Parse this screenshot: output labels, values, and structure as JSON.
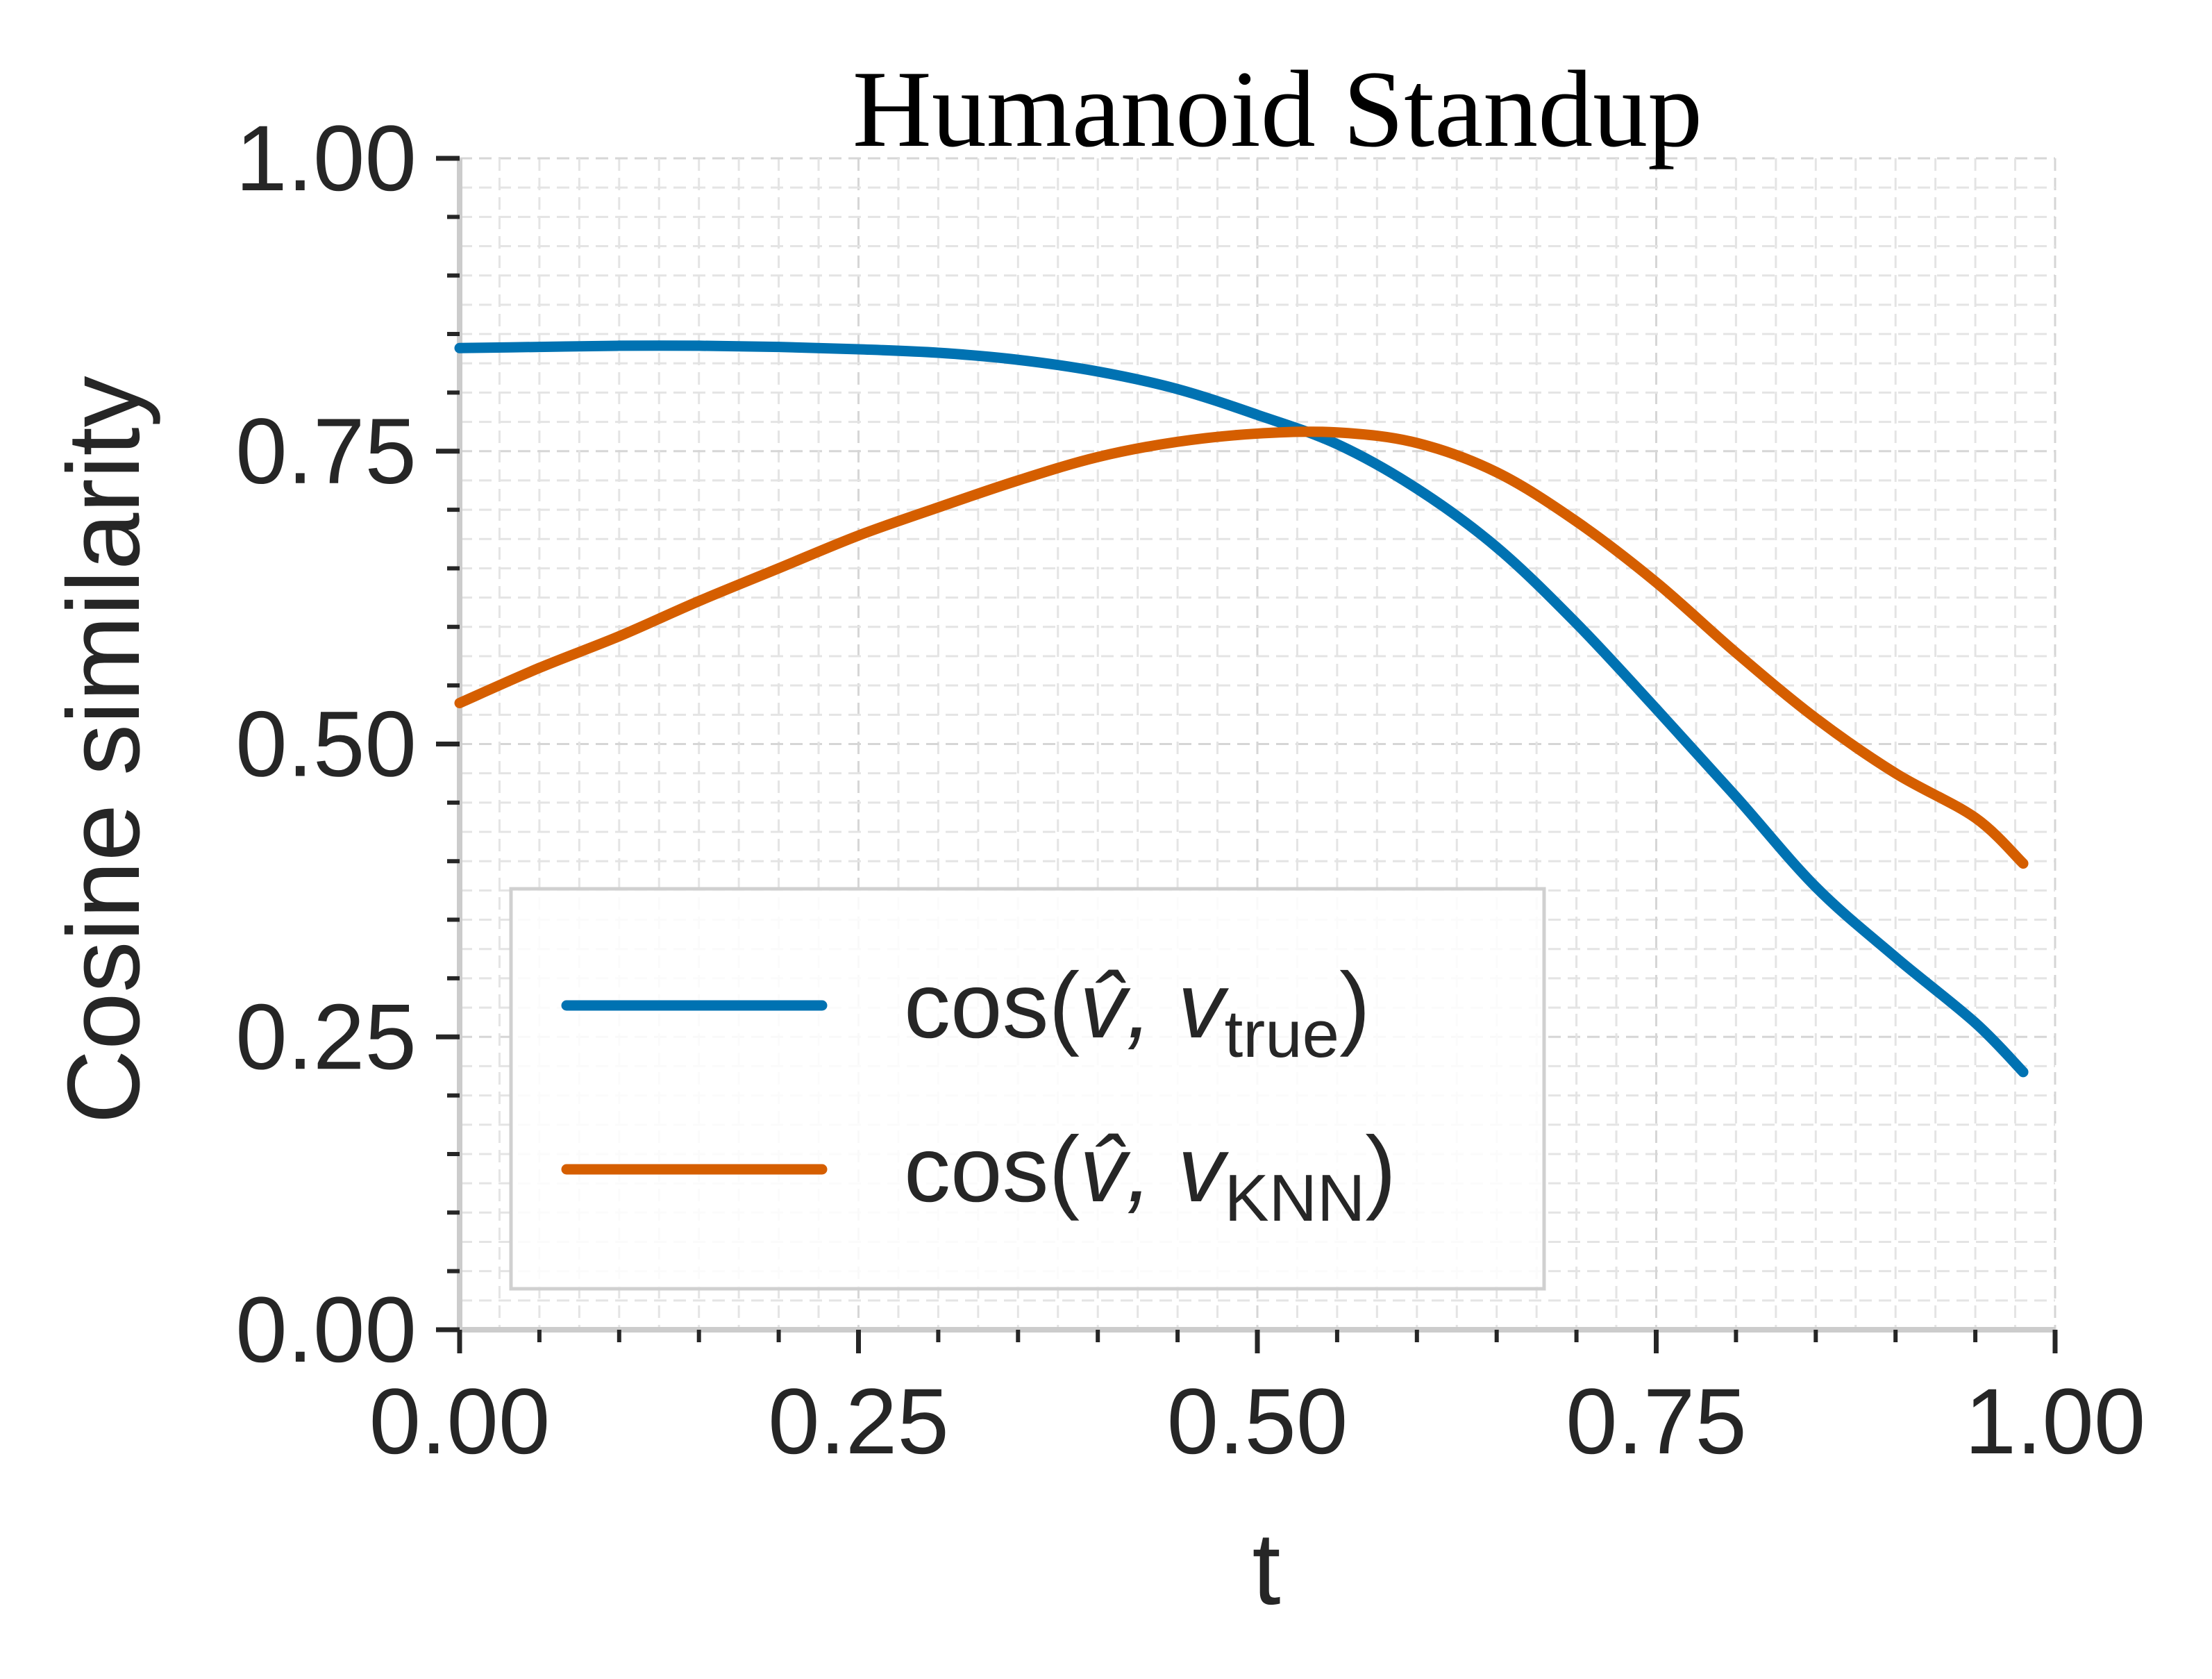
{
  "chart_data": {
    "type": "line",
    "title": "Humanoid Standup",
    "xlabel": "t",
    "ylabel": "Cosine similarity",
    "xlim": [
      0.0,
      1.0
    ],
    "ylim": [
      0.0,
      1.0
    ],
    "xticks": [
      "0.00",
      "0.25",
      "0.50",
      "0.75",
      "1.00"
    ],
    "yticks": [
      "0.00",
      "0.25",
      "0.50",
      "0.75",
      "1.00"
    ],
    "grid": true,
    "legend_position": "lower-left",
    "series": [
      {
        "name": "cos(v̂, v_true)",
        "legend_main": "cos(",
        "legend_var": "v̂, v",
        "legend_sub": "true",
        "legend_close": ")",
        "color": "#0072b2",
        "x": [
          0.0,
          0.05,
          0.1,
          0.15,
          0.2,
          0.25,
          0.3,
          0.35,
          0.4,
          0.45,
          0.5,
          0.55,
          0.6,
          0.65,
          0.7,
          0.75,
          0.8,
          0.85,
          0.9,
          0.95,
          0.98
        ],
        "y": [
          0.838,
          0.839,
          0.84,
          0.84,
          0.839,
          0.837,
          0.834,
          0.828,
          0.818,
          0.803,
          0.781,
          0.756,
          0.718,
          0.668,
          0.603,
          0.53,
          0.455,
          0.378,
          0.318,
          0.262,
          0.22
        ]
      },
      {
        "name": "cos(v̂, v_KNN)",
        "legend_main": "cos(",
        "legend_var": "v̂, v",
        "legend_sub": "KNN",
        "legend_close": ")",
        "color": "#d55e00",
        "x": [
          0.0,
          0.05,
          0.1,
          0.15,
          0.2,
          0.25,
          0.3,
          0.35,
          0.4,
          0.45,
          0.5,
          0.55,
          0.6,
          0.65,
          0.7,
          0.75,
          0.8,
          0.85,
          0.9,
          0.95,
          0.98
        ],
        "y": [
          0.535,
          0.565,
          0.592,
          0.622,
          0.65,
          0.678,
          0.702,
          0.725,
          0.745,
          0.758,
          0.765,
          0.766,
          0.757,
          0.732,
          0.69,
          0.638,
          0.578,
          0.522,
          0.475,
          0.437,
          0.398
        ]
      }
    ]
  }
}
